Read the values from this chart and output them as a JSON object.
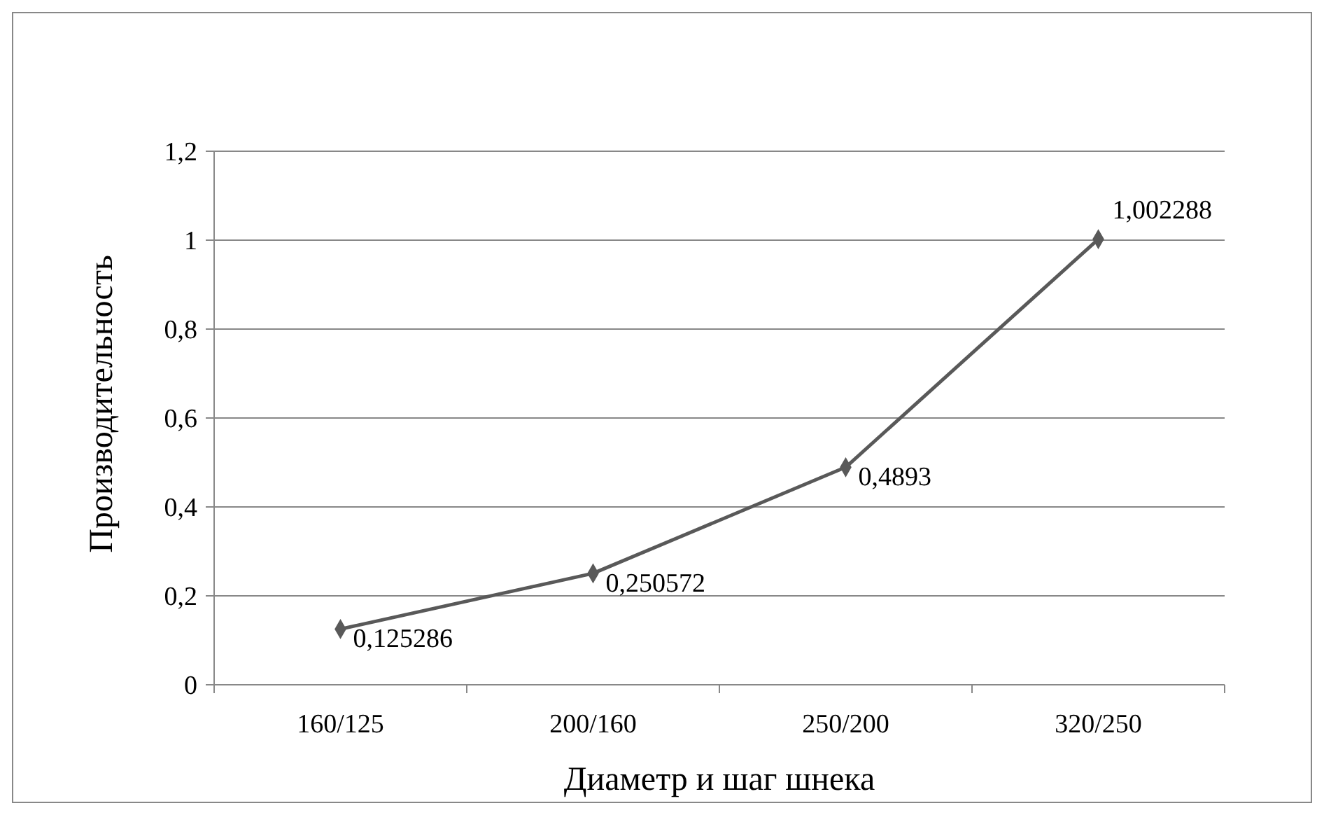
{
  "chart_data": {
    "type": "line",
    "xlabel": "Диаметр и шаг шнека",
    "ylabel": "Производительность",
    "categories": [
      "160/125",
      "200/160",
      "250/200",
      "320/250"
    ],
    "series": [
      {
        "color": "#595959",
        "values": [
          0.125286,
          0.250572,
          0.4893,
          1.002288
        ],
        "value_labels": [
          "0,125286",
          "0,250572",
          "0,4893",
          "1,002288"
        ]
      }
    ],
    "ylim": [
      0,
      1.2
    ],
    "yticks": [
      0,
      {
        "value": 0.2,
        "label": "0,2"
      },
      {
        "value": 0.4,
        "label": "0,4"
      },
      {
        "value": 0.6,
        "label": "0,6"
      },
      {
        "value": 0.8,
        "label": "0,8"
      },
      1,
      {
        "value": 1.2,
        "label": "1,2"
      }
    ],
    "grid": "y",
    "marker": "diamond",
    "line_style": "solid"
  }
}
